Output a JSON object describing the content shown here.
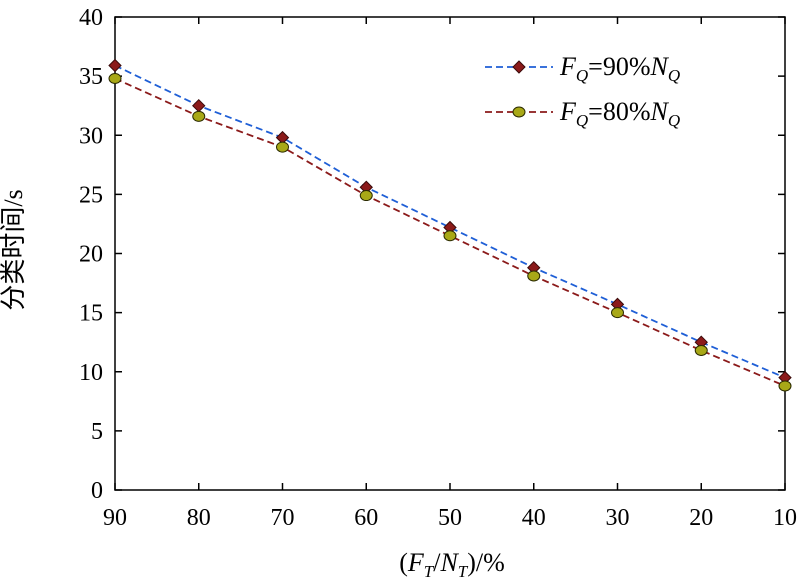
{
  "chart_data": {
    "type": "line",
    "title": "",
    "xlabel": "(F_T/N_T)/%",
    "ylabel": "分类时间/s",
    "x": [
      90,
      80,
      70,
      60,
      50,
      40,
      30,
      20,
      10
    ],
    "x_tick_labels": [
      "90",
      "80",
      "70",
      "60",
      "50",
      "40",
      "30",
      "20",
      "10"
    ],
    "y_tick_labels": [
      "0",
      "5",
      "10",
      "15",
      "20",
      "25",
      "30",
      "35",
      "40"
    ],
    "xlim": [
      90,
      10
    ],
    "ylim": [
      0,
      40
    ],
    "grid": false,
    "legend_position": "top-right",
    "series": [
      {
        "name": "F_Q=90%N_Q",
        "values": [
          35.9,
          32.5,
          29.8,
          25.6,
          22.2,
          18.8,
          15.7,
          12.5,
          9.5
        ],
        "line_color": "#1f5fd6",
        "marker": "diamond",
        "marker_color": "#8b1a1a"
      },
      {
        "name": "F_Q=80%N_Q",
        "values": [
          34.8,
          31.6,
          29.0,
          24.9,
          21.5,
          18.1,
          15.0,
          11.8,
          8.8
        ],
        "line_color": "#8b1a1a",
        "marker": "circle",
        "marker_color": "#a8a817"
      }
    ]
  }
}
